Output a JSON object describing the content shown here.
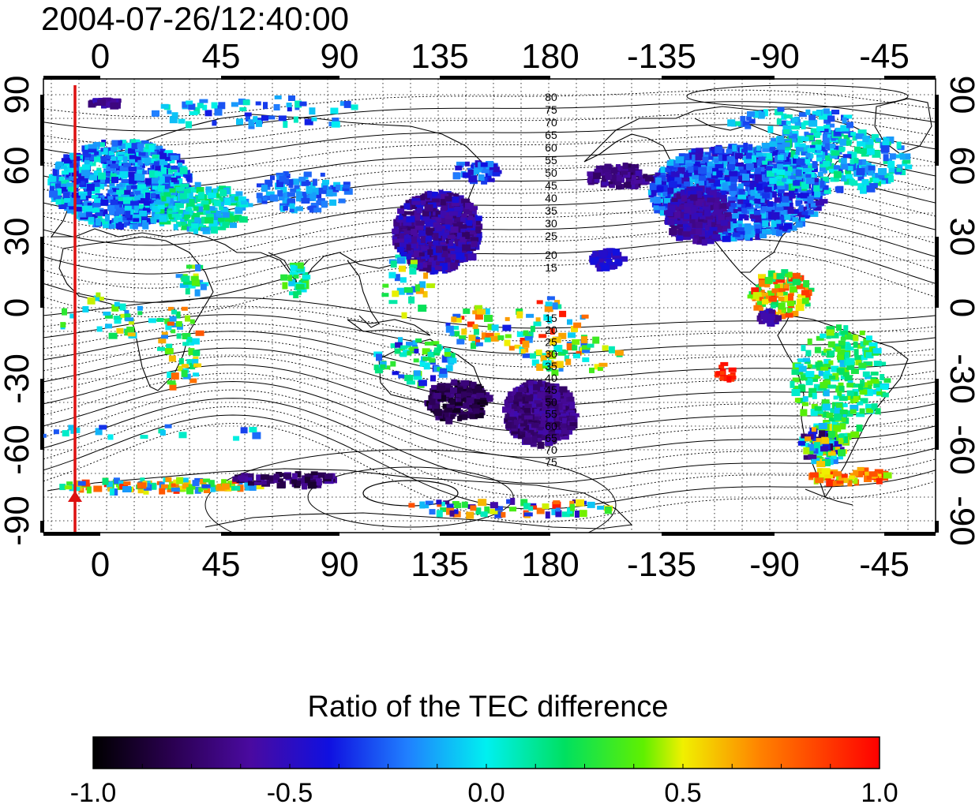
{
  "header": {
    "timestamp": "2004-07-26/12:40:00"
  },
  "map": {
    "lon_tick_labels": [
      "0",
      "45",
      "90",
      "135",
      "180",
      "-135",
      "-90",
      "-45"
    ],
    "lat_tick_labels": [
      "90",
      "60",
      "30",
      "0",
      "-30",
      "-60",
      "-90"
    ],
    "contour_labels_north": [
      "80",
      "75",
      "70",
      "65",
      "60",
      "55",
      "50",
      "45",
      "40",
      "35",
      "30",
      "25",
      "20",
      "15"
    ],
    "contour_labels_south": [
      "15",
      "20",
      "25",
      "30",
      "35",
      "40",
      "45",
      "50",
      "55",
      "60",
      "65",
      "70",
      "75"
    ],
    "marker_color": "#dd1111"
  },
  "colorbar": {
    "title": "Ratio of the TEC difference",
    "tick_labels": [
      "-1.0",
      "-0.5",
      "0.0",
      "0.5",
      "1.0"
    ],
    "range": [
      -1.0,
      1.0
    ]
  }
}
